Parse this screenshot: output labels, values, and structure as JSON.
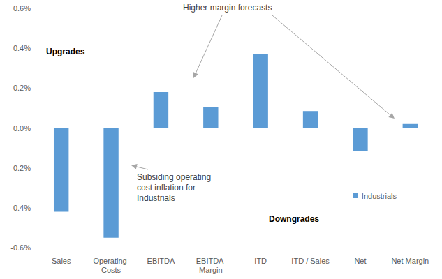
{
  "chart_data": {
    "type": "bar",
    "categories": [
      "Sales",
      "Operating Costs",
      "EBITDA",
      "EBITDA Margin",
      "ITD",
      "ITD / Sales",
      "Net",
      "Net Margin"
    ],
    "series": [
      {
        "name": "Industrials",
        "color": "#5b9bd5",
        "values": [
          -0.42,
          -0.55,
          0.18,
          0.105,
          0.37,
          0.085,
          -0.115,
          0.02
        ]
      }
    ],
    "ylim": [
      -0.6,
      0.6
    ],
    "yticks": [
      {
        "value": -0.6,
        "label": "-0.6%"
      },
      {
        "value": -0.4,
        "label": "-0.4%"
      },
      {
        "value": -0.2,
        "label": "-0.2%"
      },
      {
        "value": 0,
        "label": "0.0%"
      },
      {
        "value": 0.2,
        "label": "0.2%"
      },
      {
        "value": 0.4,
        "label": "0.4%"
      },
      {
        "value": 0.6,
        "label": "0.6%"
      }
    ],
    "grid": false,
    "legend": "right",
    "annotations": [
      "Upgrades",
      "Higher margin forecasts",
      "Subsiding operating cost inflation for Industrials",
      "Downgrades"
    ]
  }
}
